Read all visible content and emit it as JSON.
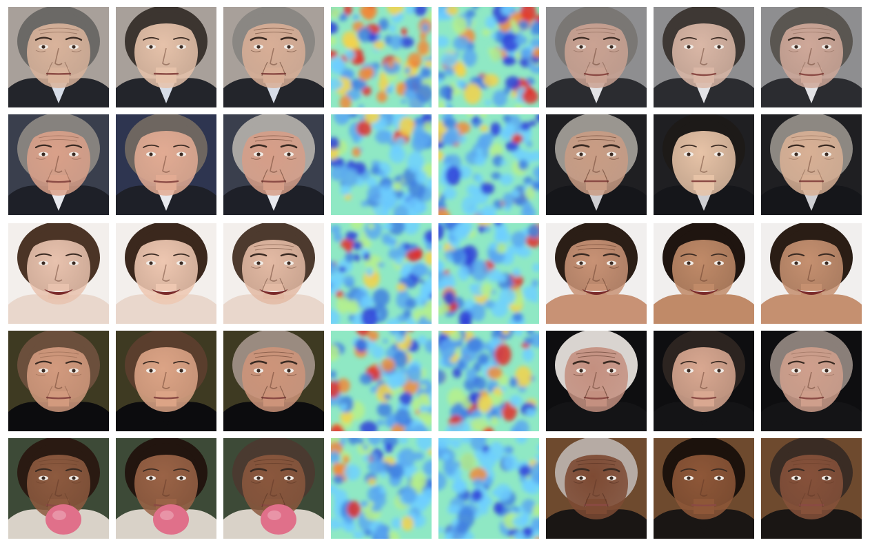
{
  "figure": {
    "rows": [
      {
        "faces": [
          {
            "skin": "#d9b39b",
            "hair": "#6b6966",
            "bg": "#a8a09a",
            "cloth": "#23252b",
            "shirt": "#d7dde8",
            "age": 0.62,
            "smile": 0.1
          },
          {
            "skin": "#e6c2aa",
            "hair": "#3c3530",
            "bg": "#a8a09a",
            "cloth": "#23252b",
            "shirt": "#d7dde8",
            "age": 0.15,
            "smile": 0.1
          },
          {
            "skin": "#d8ae96",
            "hair": "#8a8783",
            "bg": "#a8a09a",
            "cloth": "#23252b",
            "shirt": "#d7dde8",
            "age": 0.85,
            "smile": 0.1
          },
          {
            "skin": "#caa292",
            "hair": "#7a7774",
            "bg": "#8e8e90",
            "cloth": "#2b2c30",
            "shirt": "#e3e3e6",
            "age": 0.55,
            "smile": 0.5
          },
          {
            "skin": "#dab7a6",
            "hair": "#3e3834",
            "bg": "#8e8e90",
            "cloth": "#2b2c30",
            "shirt": "#e3e3e6",
            "age": 0.12,
            "smile": 0.5
          },
          {
            "skin": "#cfa899",
            "hair": "#5a5651",
            "bg": "#8e8e90",
            "cloth": "#2b2c30",
            "shirt": "#e3e3e6",
            "age": 0.5,
            "smile": 0.5
          }
        ],
        "maps": [
          {
            "seed": 11,
            "hot": 0.34
          },
          {
            "seed": 12,
            "hot": 0.26
          }
        ]
      },
      {
        "faces": [
          {
            "skin": "#d9a089",
            "hair": "#86827e",
            "bg": "#3a3f4d",
            "cloth": "#1e2028",
            "shirt": "#e8e9ee",
            "age": 0.55,
            "smile": 0.3
          },
          {
            "skin": "#e2ab93",
            "hair": "#6e6660",
            "bg": "#2e3550",
            "cloth": "#1e2028",
            "shirt": "#e8e9ee",
            "age": 0.12,
            "smile": 0.35
          },
          {
            "skin": "#d69e88",
            "hair": "#aaa7a3",
            "bg": "#3a3f4d",
            "cloth": "#1e2028",
            "shirt": "#e8e9ee",
            "age": 0.85,
            "smile": 0.2
          },
          {
            "skin": "#c99c84",
            "hair": "#9a9690",
            "bg": "#1f1f22",
            "cloth": "#15161a",
            "shirt": "#cfcfd3",
            "age": 0.9,
            "smile": 0.0
          },
          {
            "skin": "#e7c3a7",
            "hair": "#1d1a18",
            "bg": "#1f1f22",
            "cloth": "#15161a",
            "shirt": "#cfcfd3",
            "age": 0.1,
            "smile": 0.0
          },
          {
            "skin": "#d8b095",
            "hair": "#8d8882",
            "bg": "#1f1f22",
            "cloth": "#15161a",
            "shirt": "#cfcfd3",
            "age": 0.55,
            "smile": 0.0
          }
        ],
        "maps": [
          {
            "seed": 21,
            "hot": 0.12
          },
          {
            "seed": 22,
            "hot": 0.14
          }
        ]
      },
      {
        "faces": [
          {
            "skin": "#e8c2ae",
            "hair": "#4b3426",
            "bg": "#f3efec",
            "cloth": "#e9d7cc",
            "shirt": "#e9d7cc",
            "age": 0.35,
            "smile": 1.0
          },
          {
            "skin": "#eec7b1",
            "hair": "#3b281d",
            "bg": "#f3efec",
            "cloth": "#e9d7cc",
            "shirt": "#e9d7cc",
            "age": 0.1,
            "smile": 1.0
          },
          {
            "skin": "#e3baa4",
            "hair": "#4d3a2e",
            "bg": "#f3efec",
            "cloth": "#e9d7cc",
            "shirt": "#e9d7cc",
            "age": 0.75,
            "smile": 1.0
          },
          {
            "skin": "#c89275",
            "hair": "#2b1e16",
            "bg": "#f1efee",
            "cloth": "#c89275",
            "shirt": "#c89275",
            "age": 0.8,
            "smile": 1.0
          },
          {
            "skin": "#c08a68",
            "hair": "#1f1510",
            "bg": "#f1efee",
            "cloth": "#c08a68",
            "shirt": "#c08a68",
            "age": 0.1,
            "smile": 1.0
          },
          {
            "skin": "#c59070",
            "hair": "#2a1d15",
            "bg": "#f1efee",
            "cloth": "#c59070",
            "shirt": "#c59070",
            "age": 0.45,
            "smile": 1.0
          }
        ],
        "maps": [
          {
            "seed": 31,
            "hot": 0.1
          },
          {
            "seed": 32,
            "hot": 0.1
          }
        ]
      },
      {
        "faces": [
          {
            "skin": "#d29a7e",
            "hair": "#6b4f3c",
            "bg": "#3e3a22",
            "cloth": "#0c0c0e",
            "shirt": "#0c0c0e",
            "age": 0.5,
            "smile": 0.3
          },
          {
            "skin": "#dca486",
            "hair": "#5a3e2d",
            "bg": "#3e3a22",
            "cloth": "#0c0c0e",
            "shirt": "#0c0c0e",
            "age": 0.1,
            "smile": 0.3
          },
          {
            "skin": "#cd947a",
            "hair": "#9a8b80",
            "bg": "#3e3a22",
            "cloth": "#0c0c0e",
            "shirt": "#0c0c0e",
            "age": 0.85,
            "smile": 0.3
          },
          {
            "skin": "#c49080",
            "hair": "#d9d4d0",
            "bg": "#0e0e10",
            "cloth": "#141416",
            "shirt": "#141416",
            "age": 0.95,
            "smile": 0.4
          },
          {
            "skin": "#d9a891",
            "hair": "#2c2420",
            "bg": "#0e0e10",
            "cloth": "#141416",
            "shirt": "#141416",
            "age": 0.1,
            "smile": 0.4
          },
          {
            "skin": "#cf9f8c",
            "hair": "#8a7f79",
            "bg": "#0e0e10",
            "cloth": "#141416",
            "shirt": "#141416",
            "age": 0.5,
            "smile": 0.4
          }
        ],
        "maps": [
          {
            "seed": 41,
            "hot": 0.3
          },
          {
            "seed": 42,
            "hot": 0.28
          }
        ]
      },
      {
        "faces": [
          {
            "skin": "#8d5a3f",
            "hair": "#2a1a12",
            "bg": "#3d4a37",
            "cloth": "#d9d2c8",
            "shirt": "#d9d2c8",
            "age": 0.5,
            "smile": 0.3,
            "mic": "#e0708a"
          },
          {
            "skin": "#9a6346",
            "hair": "#22150f",
            "bg": "#3d4a37",
            "cloth": "#d9d2c8",
            "shirt": "#d9d2c8",
            "age": 0.1,
            "smile": 0.3,
            "mic": "#e0708a"
          },
          {
            "skin": "#8a573d",
            "hair": "#4a3a30",
            "bg": "#3d4a37",
            "cloth": "#d9d2c8",
            "shirt": "#d9d2c8",
            "age": 0.85,
            "smile": 0.3,
            "mic": "#e0708a"
          },
          {
            "skin": "#7d4a33",
            "hair": "#b6aba4",
            "bg": "#6e4a2e",
            "cloth": "#1a1614",
            "shirt": "#1a1614",
            "age": 0.95,
            "smile": 0.0
          },
          {
            "skin": "#8e5738",
            "hair": "#1c120c",
            "bg": "#6e4a2e",
            "cloth": "#1a1614",
            "shirt": "#1a1614",
            "age": 0.1,
            "smile": 0.2
          },
          {
            "skin": "#86513a",
            "hair": "#3a2c24",
            "bg": "#6e4a2e",
            "cloth": "#1a1614",
            "shirt": "#1a1614",
            "age": 0.5,
            "smile": 0.1
          }
        ],
        "maps": [
          {
            "seed": 51,
            "hot": 0.06
          },
          {
            "seed": 52,
            "hot": 0.1
          }
        ]
      }
    ]
  }
}
